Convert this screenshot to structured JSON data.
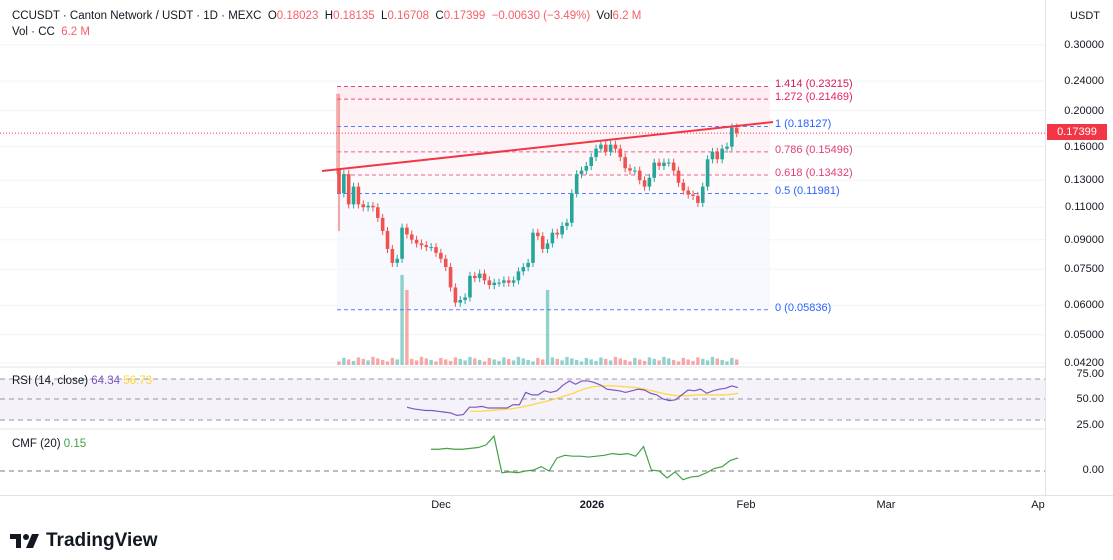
{
  "header": {
    "symbol_line": "CCUSDT · Canton Network / USDT · 1D · MEXC",
    "o_label": "O",
    "o": "0.18023",
    "h_label": "H",
    "h": "0.18135",
    "l_label": "L",
    "l": "0.16708",
    "c_label": "C",
    "c": "0.17399",
    "change": "−0.00630 (−3.49%)",
    "vol_label": "Vol",
    "vol": "6.2 M",
    "vol_line_label": "Vol · CC",
    "vol_line_value": "6.2 M"
  },
  "currency": "USDT",
  "current_price": "0.17399",
  "price_axis": [
    "0.30000",
    "0.24000",
    "0.20000",
    "0.16000",
    "0.13000",
    "0.11000",
    "0.09000",
    "0.07500",
    "0.06000",
    "0.05000",
    "0.04200"
  ],
  "rsi": {
    "label": "RSI (14, close)",
    "value": "64.34",
    "ma_value": "56.73",
    "axis": [
      "75.00",
      "50.00",
      "25.00"
    ]
  },
  "cmf": {
    "label": "CMF (20)",
    "value": "0.15",
    "axis": [
      "0.00"
    ]
  },
  "x_axis": {
    "dec": "Dec",
    "y2026": "2026",
    "feb": "Feb",
    "mar": "Mar",
    "apr": "Ap"
  },
  "fib": [
    {
      "level": "1.414",
      "price": 0.23215,
      "text": "1.414 (0.23215)",
      "color": "#d81b60"
    },
    {
      "level": "1.272",
      "price": 0.21469,
      "text": "1.272 (0.21469)",
      "color": "#e91e63"
    },
    {
      "level": "1",
      "price": 0.18127,
      "text": "1 (0.18127)",
      "color": "#2962ff"
    },
    {
      "level": "0.786",
      "price": 0.15496,
      "text": "0.786 (0.15496)",
      "color": "#e04070"
    },
    {
      "level": "0.618",
      "price": 0.13432,
      "text": "0.618 (0.13432)",
      "color": "#e04070"
    },
    {
      "level": "0.5",
      "price": 0.11981,
      "text": "0.5 (0.11981)",
      "color": "#2962ff"
    },
    {
      "level": "0",
      "price": 0.05836,
      "text": "0 (0.05836)",
      "color": "#2962ff"
    }
  ],
  "colors": {
    "up": "#26a69a",
    "down": "#ef5350",
    "rsi": "#7e57c2",
    "rsi_ma": "#fdd835",
    "cmf": "#43a047",
    "trend": "#f23645"
  },
  "brand": "TradingView",
  "chart_data": {
    "type": "candlestick",
    "first": {
      "o": 0.14,
      "h": 0.222,
      "l": 0.095
    },
    "closes": [
      0.12,
      0.135,
      0.112,
      0.125,
      0.112,
      0.11,
      0.111,
      0.11,
      0.103,
      0.095,
      0.085,
      0.078,
      0.08,
      0.097,
      0.093,
      0.09,
      0.088,
      0.087,
      0.086,
      0.086,
      0.083,
      0.08,
      0.076,
      0.067,
      0.061,
      0.062,
      0.063,
      0.072,
      0.071,
      0.073,
      0.07,
      0.068,
      0.069,
      0.069,
      0.07,
      0.069,
      0.07,
      0.074,
      0.076,
      0.078,
      0.094,
      0.092,
      0.085,
      0.088,
      0.094,
      0.093,
      0.098,
      0.1,
      0.12,
      0.135,
      0.138,
      0.142,
      0.15,
      0.158,
      0.162,
      0.155,
      0.162,
      0.158,
      0.15,
      0.14,
      0.138,
      0.138,
      0.13,
      0.125,
      0.132,
      0.145,
      0.142,
      0.145,
      0.145,
      0.138,
      0.128,
      0.122,
      0.119,
      0.118,
      0.113,
      0.125,
      0.148,
      0.155,
      0.148,
      0.158,
      0.16,
      0.18,
      0.174
    ],
    "volume": {
      "spikes": {
        "13": 120,
        "14": 100,
        "43": 100
      },
      "base": 8
    },
    "rsi_values": [
      40,
      38,
      37,
      36,
      36,
      35,
      34,
      33,
      30,
      31,
      40,
      40,
      41,
      39,
      39,
      39,
      39,
      43,
      43,
      58,
      55,
      55,
      60,
      58,
      60,
      67,
      72,
      68,
      72,
      72,
      70,
      67,
      62,
      61,
      60,
      58,
      60,
      62,
      61,
      57,
      55,
      50,
      48,
      49,
      55,
      61,
      60,
      62,
      57,
      60,
      62,
      63,
      66,
      64
    ],
    "rsi_ma_values": [
      35,
      35,
      36,
      37,
      38,
      40,
      43,
      46,
      49,
      53,
      57,
      62,
      65,
      66,
      66,
      65,
      64,
      62,
      59,
      56,
      54,
      54,
      55,
      55,
      55,
      55,
      57
    ],
    "cmf_values": [
      0.25,
      0.25,
      0.26,
      0.25,
      0.25,
      0.26,
      0.27,
      0.3,
      0.4,
      -0.02,
      -0.01,
      -0.02,
      0.0,
      0.01,
      0.05,
      0.0,
      0.15,
      0.18,
      0.17,
      0.17,
      0.16,
      0.17,
      0.18,
      0.2,
      0.19,
      0.2,
      0.17,
      0.28,
      0.01,
      0.0,
      -0.08,
      -0.01,
      -0.1,
      -0.07,
      -0.06,
      -0.02,
      0.03,
      0.05,
      0.12,
      0.15
    ],
    "price_range": [
      0.042,
      0.3
    ],
    "scale": "log"
  }
}
